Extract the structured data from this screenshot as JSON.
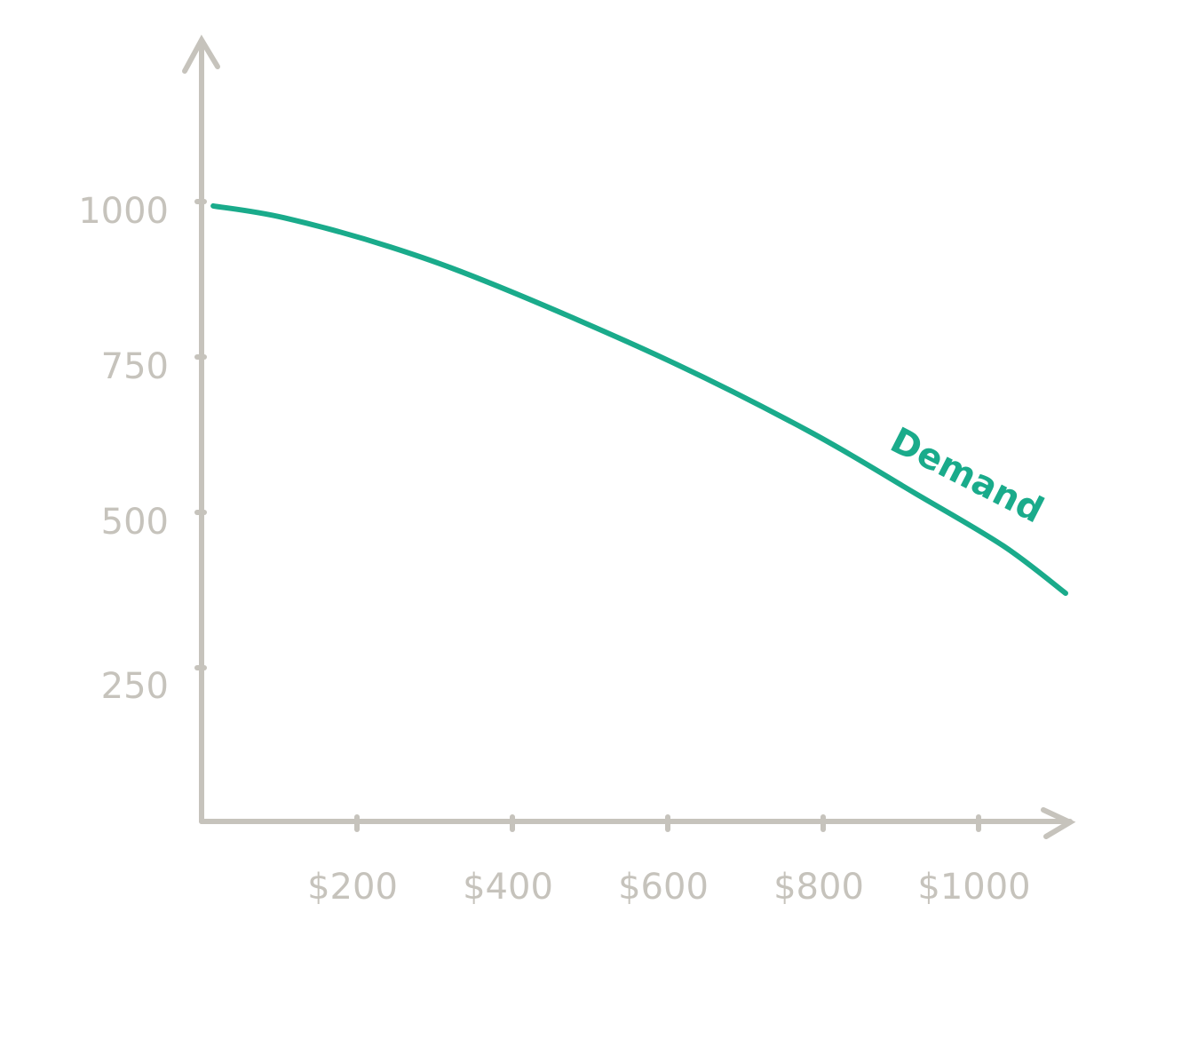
{
  "chart_data": {
    "type": "line",
    "title": "",
    "xlabel": "",
    "ylabel": "",
    "xlim": [
      0,
      1120
    ],
    "ylim": [
      0,
      1150
    ],
    "grid": false,
    "x_ticks": [
      200,
      400,
      600,
      800,
      1000
    ],
    "x_tick_labels": [
      "$200",
      "$400",
      "$600",
      "$800",
      "$1000"
    ],
    "y_ticks": [
      250,
      500,
      750,
      1000
    ],
    "y_tick_labels": [
      "250",
      "500",
      "750",
      "1000"
    ],
    "series": [
      {
        "name": "Demand",
        "color": "#1aab8b",
        "x": [
          15,
          106,
          243,
          381,
          598,
          781,
          918,
          1032,
          1112
        ],
        "y": [
          993,
          974,
          927,
          864,
          746,
          631,
          531,
          446,
          370
        ]
      }
    ],
    "axis_color": "#c6c3bc"
  }
}
